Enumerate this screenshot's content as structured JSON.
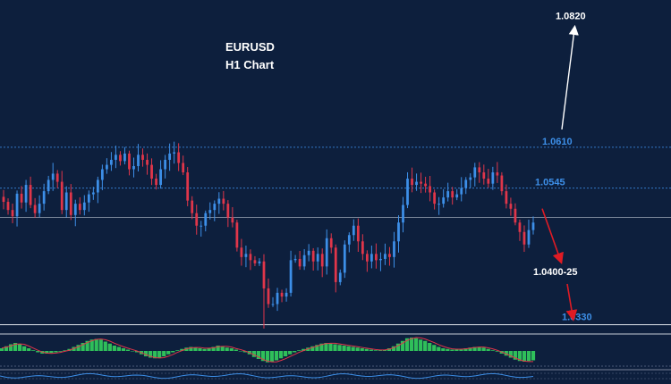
{
  "chart_data": {
    "type": "candlestick",
    "title": "EURUSD",
    "subtitle": "H1 Chart",
    "instrument": "EURUSD",
    "timeframe": "H1",
    "grid": false,
    "colors": {
      "background": "#0d1f3d",
      "bull": "#3d8fe8",
      "bear": "#e0364a",
      "level_label": "#3d8fe8",
      "level_line": "#3d8fe8",
      "target_label": "#ffffff",
      "current_price_line": "#9aa4b4",
      "forecast_down_arrow": "#e01b24",
      "forecast_up_arrow": "#ffffff",
      "histogram": "#2fbf5a",
      "oscillator_line": "#e0364a"
    },
    "price_range": [
      1.0318,
      1.0842
    ],
    "current_price": 1.0498,
    "levels": [
      {
        "value": 1.061,
        "label": "1.0610",
        "style": "dotted"
      },
      {
        "value": 1.0545,
        "label": "1.0545",
        "style": "dotted"
      },
      {
        "value": 1.033,
        "label": "1.0330",
        "style": "solid"
      }
    ],
    "targets": [
      {
        "value": 1.082,
        "label": "1.0820",
        "direction": "up"
      },
      {
        "value": 1.0412,
        "label": "1.0400-25",
        "direction": "down"
      }
    ],
    "closes": [
      1.0523,
      1.051,
      1.05,
      1.0536,
      1.0522,
      1.055,
      1.0518,
      1.0505,
      1.052,
      1.054,
      1.0558,
      1.0568,
      1.0555,
      1.051,
      1.0538,
      1.0502,
      1.052,
      1.051,
      1.0522,
      1.0535,
      1.0538,
      1.0558,
      1.0575,
      1.0582,
      1.059,
      1.0598,
      1.0588,
      1.06,
      1.0575,
      1.058,
      1.0598,
      1.059,
      1.0582,
      1.056,
      1.055,
      1.0575,
      1.059,
      1.06,
      1.0602,
      1.0585,
      1.057,
      1.0525,
      1.0505,
      1.0485,
      1.0485,
      1.0505,
      1.051,
      1.052,
      1.0528,
      1.052,
      1.0498,
      1.049,
      1.045,
      1.0435,
      1.044,
      1.043,
      1.0425,
      1.0428,
      1.0385,
      1.036,
      1.036,
      1.0378,
      1.0372,
      1.0378,
      1.043,
      1.0432,
      1.042,
      1.0438,
      1.0445,
      1.0428,
      1.044,
      1.042,
      1.0465,
      1.045,
      1.0395,
      1.041,
      1.0455,
      1.047,
      1.0485,
      1.046,
      1.044,
      1.0428,
      1.044,
      1.043,
      1.0432,
      1.044,
      1.0435,
      1.046,
      1.049,
      1.0518,
      1.056,
      1.055,
      1.0555,
      1.0552,
      1.0548,
      1.0538,
      1.052,
      1.052,
      1.053,
      1.054,
      1.053,
      1.0535,
      1.0545,
      1.0558,
      1.0562,
      1.0578,
      1.057,
      1.056,
      1.0552,
      1.057,
      1.0565,
      1.054,
      1.052,
      1.0512,
      1.049,
      1.0475,
      1.0455,
      1.0478,
      1.049
    ],
    "oscillator": [
      0.2,
      0.35,
      0.5,
      0.6,
      0.5,
      0.35,
      0.2,
      0.05,
      -0.1,
      -0.2,
      -0.2,
      -0.15,
      -0.1,
      -0.05,
      0.05,
      0.15,
      0.3,
      0.45,
      0.6,
      0.75,
      0.85,
      0.9,
      0.85,
      0.7,
      0.55,
      0.4,
      0.3,
      0.2,
      0.1,
      0.0,
      -0.1,
      -0.25,
      -0.4,
      -0.5,
      -0.55,
      -0.5,
      -0.4,
      -0.25,
      -0.1,
      0.05,
      0.15,
      0.25,
      0.3,
      0.25,
      0.2,
      0.15,
      0.2,
      0.3,
      0.4,
      0.35,
      0.25,
      0.2,
      0.1,
      0.0,
      -0.1,
      -0.25,
      -0.45,
      -0.6,
      -0.75,
      -0.85,
      -0.8,
      -0.7,
      -0.55,
      -0.4,
      -0.25,
      -0.1,
      0.05,
      0.15,
      0.25,
      0.35,
      0.45,
      0.55,
      0.6,
      0.55,
      0.5,
      0.45,
      0.4,
      0.35,
      0.3,
      0.25,
      0.2,
      0.15,
      0.1,
      0.05,
      0.05,
      0.1,
      0.2,
      0.35,
      0.55,
      0.75,
      0.95,
      1.0,
      0.95,
      0.85,
      0.75,
      0.6,
      0.45,
      0.3,
      0.2,
      0.15,
      0.1,
      0.1,
      0.15,
      0.2,
      0.25,
      0.3,
      0.3,
      0.25,
      0.15,
      0.05,
      -0.05,
      -0.2,
      -0.35,
      -0.5,
      -0.65,
      -0.75,
      -0.8,
      -0.75,
      -0.7
    ]
  }
}
